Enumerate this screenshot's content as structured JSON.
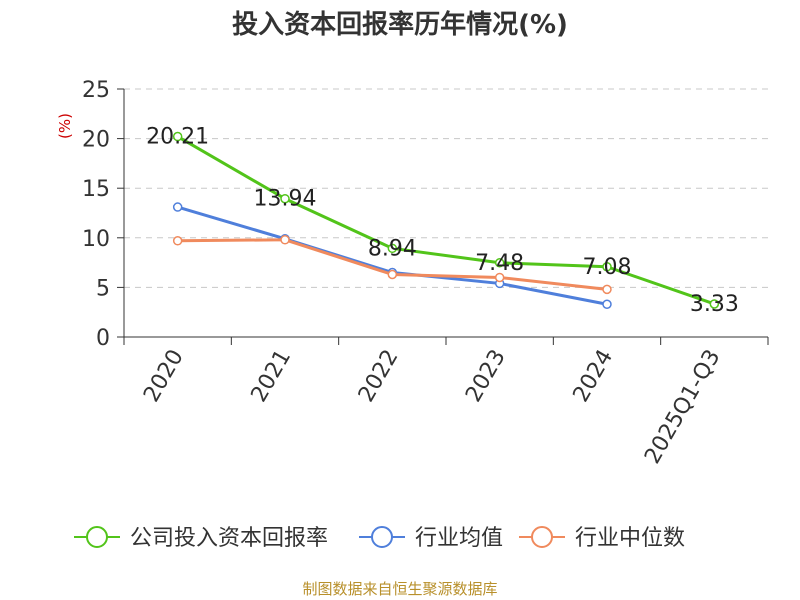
{
  "chart_data": {
    "type": "line",
    "title": "投入资本回报率历年情况(%)",
    "ylabel": "(%)",
    "categories": [
      "2020",
      "2021",
      "2022",
      "2023",
      "2024",
      "2025Q1-Q3"
    ],
    "ylim": [
      0,
      25
    ],
    "yticks": [
      0,
      5,
      10,
      15,
      20,
      25
    ],
    "grid": true,
    "legend_position": "bottom",
    "series": [
      {
        "name": "公司投入资本回报率",
        "color": "#52c41a",
        "values": [
          20.21,
          13.94,
          8.94,
          7.48,
          7.08,
          3.33
        ],
        "labels": [
          "20.21",
          "13.94",
          "8.94",
          "7.48",
          "7.08",
          "3.33"
        ]
      },
      {
        "name": "行业均值",
        "color": "#4f7fdb",
        "values": [
          13.1,
          9.9,
          6.5,
          5.4,
          3.3,
          null
        ]
      },
      {
        "name": "行业中位数",
        "color": "#f08a5d",
        "values": [
          9.7,
          9.8,
          6.3,
          6.0,
          4.8,
          null
        ]
      }
    ]
  },
  "footer": {
    "source": "制图数据来自恒生聚源数据库"
  }
}
